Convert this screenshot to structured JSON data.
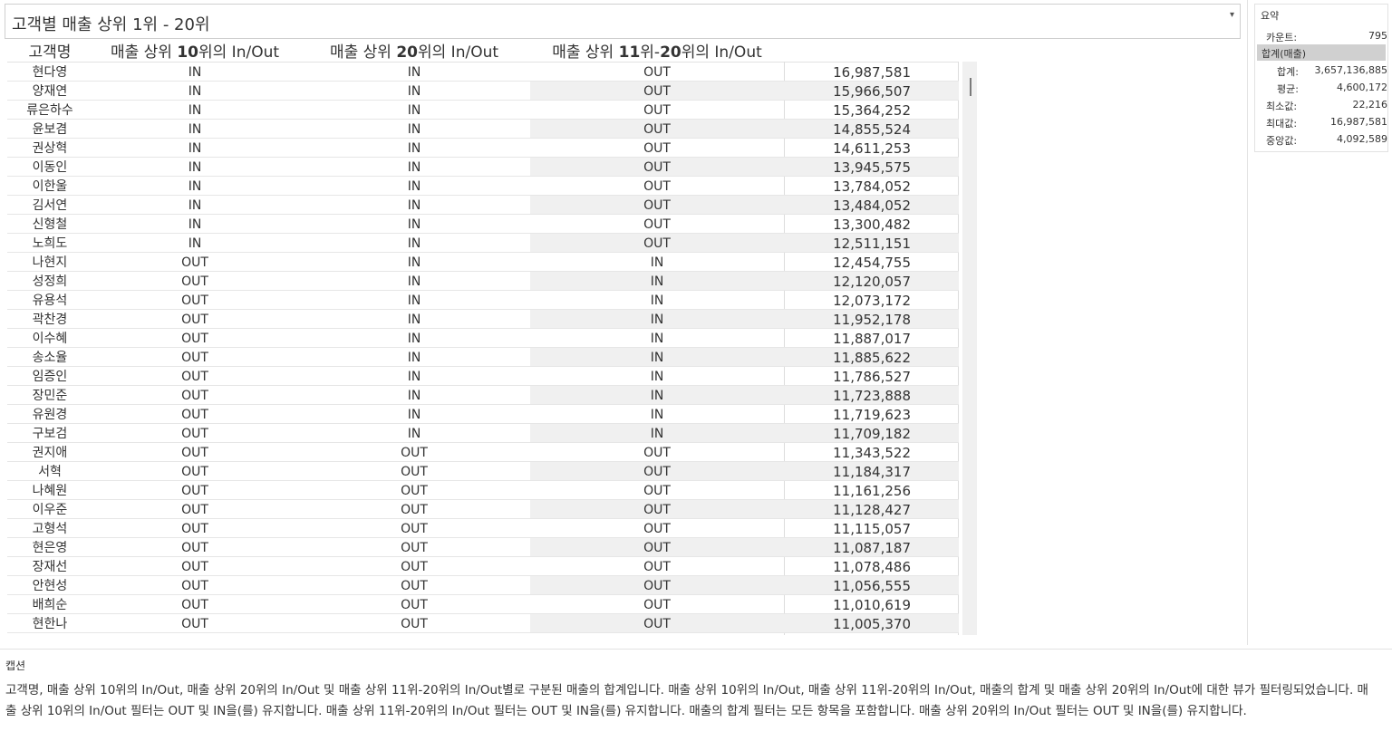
{
  "title": "고객별 매출 상위 1위 - 20위",
  "dropdown_icon": "▾",
  "headers": {
    "name": "고객명",
    "top10": {
      "pre": "매출 상위 ",
      "bold": "10",
      "post": "위의 In/Out"
    },
    "top20": {
      "pre": "매출 상위 ",
      "bold": "20",
      "post": "위의 In/Out"
    },
    "top11_20": {
      "pre": "매출 상위 ",
      "bold": "11",
      "mid": "위-",
      "bold2": "20",
      "post": "위의 In/Out"
    }
  },
  "rows": [
    {
      "name": "현다영",
      "top10": "IN",
      "top20": "IN",
      "top11_20": "OUT",
      "sales": "16,987,581"
    },
    {
      "name": "양재연",
      "top10": "IN",
      "top20": "IN",
      "top11_20": "OUT",
      "sales": "15,966,507"
    },
    {
      "name": "류은하수",
      "top10": "IN",
      "top20": "IN",
      "top11_20": "OUT",
      "sales": "15,364,252"
    },
    {
      "name": "윤보겸",
      "top10": "IN",
      "top20": "IN",
      "top11_20": "OUT",
      "sales": "14,855,524"
    },
    {
      "name": "권상혁",
      "top10": "IN",
      "top20": "IN",
      "top11_20": "OUT",
      "sales": "14,611,253"
    },
    {
      "name": "이동인",
      "top10": "IN",
      "top20": "IN",
      "top11_20": "OUT",
      "sales": "13,945,575"
    },
    {
      "name": "이한울",
      "top10": "IN",
      "top20": "IN",
      "top11_20": "OUT",
      "sales": "13,784,052"
    },
    {
      "name": "김서연",
      "top10": "IN",
      "top20": "IN",
      "top11_20": "OUT",
      "sales": "13,484,052"
    },
    {
      "name": "신형철",
      "top10": "IN",
      "top20": "IN",
      "top11_20": "OUT",
      "sales": "13,300,482"
    },
    {
      "name": "노희도",
      "top10": "IN",
      "top20": "IN",
      "top11_20": "OUT",
      "sales": "12,511,151"
    },
    {
      "name": "나현지",
      "top10": "OUT",
      "top20": "IN",
      "top11_20": "IN",
      "sales": "12,454,755"
    },
    {
      "name": "성정희",
      "top10": "OUT",
      "top20": "IN",
      "top11_20": "IN",
      "sales": "12,120,057"
    },
    {
      "name": "유용석",
      "top10": "OUT",
      "top20": "IN",
      "top11_20": "IN",
      "sales": "12,073,172"
    },
    {
      "name": "곽찬경",
      "top10": "OUT",
      "top20": "IN",
      "top11_20": "IN",
      "sales": "11,952,178"
    },
    {
      "name": "이수혜",
      "top10": "OUT",
      "top20": "IN",
      "top11_20": "IN",
      "sales": "11,887,017"
    },
    {
      "name": "송소율",
      "top10": "OUT",
      "top20": "IN",
      "top11_20": "IN",
      "sales": "11,885,622"
    },
    {
      "name": "임증인",
      "top10": "OUT",
      "top20": "IN",
      "top11_20": "IN",
      "sales": "11,786,527"
    },
    {
      "name": "장민준",
      "top10": "OUT",
      "top20": "IN",
      "top11_20": "IN",
      "sales": "11,723,888"
    },
    {
      "name": "유원경",
      "top10": "OUT",
      "top20": "IN",
      "top11_20": "IN",
      "sales": "11,719,623"
    },
    {
      "name": "구보검",
      "top10": "OUT",
      "top20": "IN",
      "top11_20": "IN",
      "sales": "11,709,182"
    },
    {
      "name": "권지애",
      "top10": "OUT",
      "top20": "OUT",
      "top11_20": "OUT",
      "sales": "11,343,522"
    },
    {
      "name": "서혁",
      "top10": "OUT",
      "top20": "OUT",
      "top11_20": "OUT",
      "sales": "11,184,317"
    },
    {
      "name": "나혜원",
      "top10": "OUT",
      "top20": "OUT",
      "top11_20": "OUT",
      "sales": "11,161,256"
    },
    {
      "name": "이우준",
      "top10": "OUT",
      "top20": "OUT",
      "top11_20": "OUT",
      "sales": "11,128,427"
    },
    {
      "name": "고형석",
      "top10": "OUT",
      "top20": "OUT",
      "top11_20": "OUT",
      "sales": "11,115,057"
    },
    {
      "name": "현은영",
      "top10": "OUT",
      "top20": "OUT",
      "top11_20": "OUT",
      "sales": "11,087,187"
    },
    {
      "name": "장재선",
      "top10": "OUT",
      "top20": "OUT",
      "top11_20": "OUT",
      "sales": "11,078,486"
    },
    {
      "name": "안현성",
      "top10": "OUT",
      "top20": "OUT",
      "top11_20": "OUT",
      "sales": "11,056,555"
    },
    {
      "name": "배희순",
      "top10": "OUT",
      "top20": "OUT",
      "top11_20": "OUT",
      "sales": "11,010,619"
    },
    {
      "name": "현한나",
      "top10": "OUT",
      "top20": "OUT",
      "top11_20": "OUT",
      "sales": "11,005,370"
    }
  ],
  "summary": {
    "title": "요약",
    "count_label": "카운트:",
    "count_value": "795",
    "group_label": "합계(매출)",
    "sum_label": "합계:",
    "sum_value": "3,657,136,885",
    "avg_label": "평균:",
    "avg_value": "4,600,172",
    "min_label": "최소값:",
    "min_value": "22,216",
    "max_label": "최대값:",
    "max_value": "16,987,581",
    "median_label": "중앙값:",
    "median_value": "4,092,589"
  },
  "caption": {
    "label": "캡션",
    "text": "고객명, 매출 상위 10위의 In/Out, 매출 상위 20위의 In/Out 및 매출 상위 11위-20위의 In/Out별로 구분된 매출의 합계입니다. 매출 상위 10위의 In/Out, 매출 상위 11위-20위의 In/Out, 매출의 합계 및 매출 상위 20위의 In/Out에 대한 뷰가 필터링되었습니다. 매출 상위 10위의 In/Out 필터는 OUT 및 IN을(를) 유지합니다. 매출 상위 11위-20위의 In/Out 필터는 OUT 및 IN을(를) 유지합니다. 매출의 합계 필터는 모든 항목을 포함합니다. 매출 상위 20위의 In/Out 필터는 OUT 및 IN을(를) 유지합니다."
  }
}
